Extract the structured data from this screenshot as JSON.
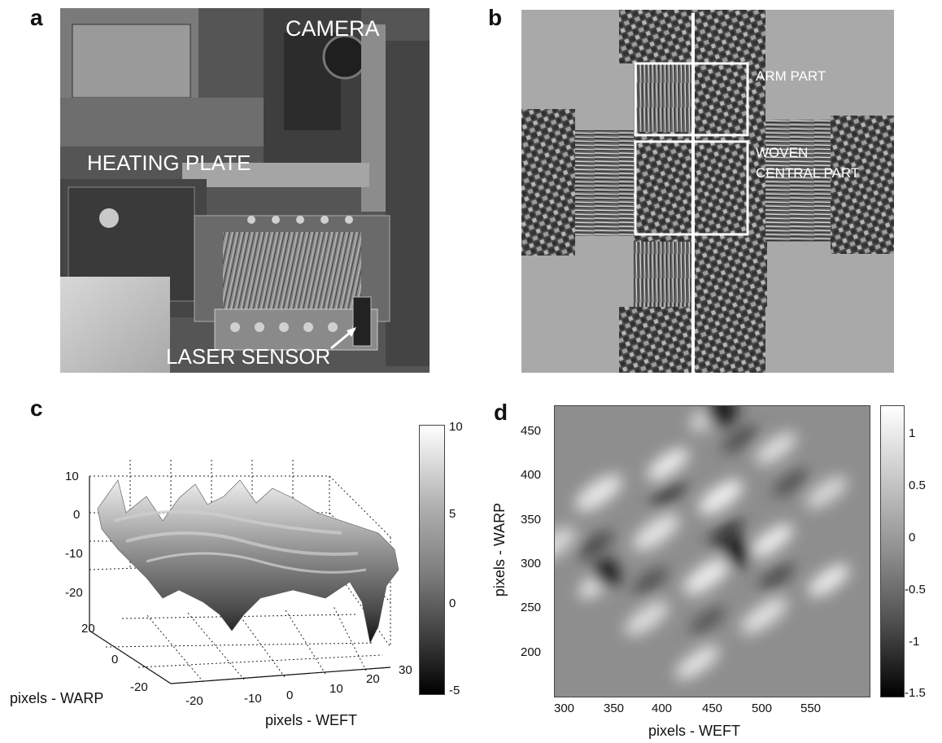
{
  "panels": {
    "a": {
      "letter": "a",
      "labels": {
        "camera": "CAMERA",
        "heating_plate": "HEATING PLATE",
        "laser_sensor": "LASER SENSOR"
      }
    },
    "b": {
      "letter": "b",
      "labels": {
        "arm_part": "ARM PART",
        "woven_line1": "WOVEN",
        "woven_line2": "CENTRAL PART"
      }
    },
    "c": {
      "letter": "c",
      "xlabel": "pixels - WEFT",
      "ylabel": "pixels - WARP",
      "z_ticks": [
        "10",
        "0",
        "-10",
        "-20"
      ],
      "warp_ticks": [
        "20",
        "0",
        "-20"
      ],
      "weft_ticks": [
        "-20",
        "-10",
        "0",
        "10",
        "20",
        "30"
      ],
      "colorbar_ticks": [
        "10",
        "5",
        "0",
        "-5"
      ]
    },
    "d": {
      "letter": "d",
      "xlabel": "pixels - WEFT",
      "ylabel": "pixels - WARP",
      "x_ticks": [
        "300",
        "350",
        "400",
        "450",
        "500",
        "550"
      ],
      "y_ticks": [
        "450",
        "400",
        "350",
        "300",
        "250",
        "200"
      ],
      "colorbar_ticks": [
        "1",
        "0.5",
        "0",
        "-0.5",
        "-1",
        "-1.5"
      ]
    }
  },
  "chart_data": [
    {
      "type": "surface",
      "xlabel": "pixels - WEFT",
      "ylabel": "pixels - WARP",
      "xlim": [
        -30,
        30
      ],
      "ylim": [
        -30,
        30
      ],
      "zlim": [
        -25,
        12
      ],
      "colorbar_range": [
        -5,
        10
      ],
      "colormap": "gray"
    },
    {
      "type": "heatmap",
      "xlabel": "pixels - WEFT",
      "ylabel": "pixels - WARP",
      "xlim": [
        280,
        590
      ],
      "ylim": [
        160,
        470
      ],
      "colorbar_range": [
        -1.6,
        1.25
      ],
      "colormap": "gray"
    }
  ]
}
